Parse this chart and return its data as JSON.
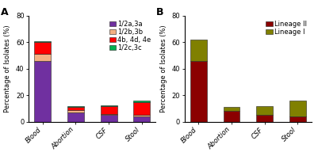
{
  "categories": [
    "Blood",
    "Abortion",
    "CSF",
    "Stool"
  ],
  "chart_A": {
    "serotype_1_2a3a": [
      46,
      7,
      5,
      4
    ],
    "serotype_1_2b3b": [
      5,
      2,
      1,
      1
    ],
    "serotype_4b4d4e": [
      9,
      2,
      6,
      10
    ],
    "serotype_1_2c3c": [
      1,
      1,
      0.5,
      1
    ],
    "colors": [
      "#7030A0",
      "#F4B183",
      "#FF0000",
      "#00B050"
    ],
    "labels": [
      "1/2a,3a",
      "1/2b,3b",
      "4b, 4d, 4e",
      "1/2c,3c"
    ]
  },
  "chart_B": {
    "lineage_II": [
      46,
      8,
      5,
      4
    ],
    "lineage_I": [
      16,
      3,
      7,
      12
    ],
    "colors": [
      "#8B0000",
      "#808000"
    ],
    "labels": [
      "Lineage II",
      "Lineage I"
    ]
  },
  "ylabel": "Percentage of Isolates (%)",
  "ylim": [
    0,
    80
  ],
  "yticks": [
    0,
    20,
    40,
    60,
    80
  ],
  "background_color": "#FFFFFF",
  "label_A": "A",
  "label_B": "B",
  "tick_fontsize": 6,
  "legend_fontsize": 6,
  "ylabel_fontsize": 6,
  "bar_width": 0.5,
  "bar_edge_color": "#222222",
  "bar_edge_width": 0.4
}
